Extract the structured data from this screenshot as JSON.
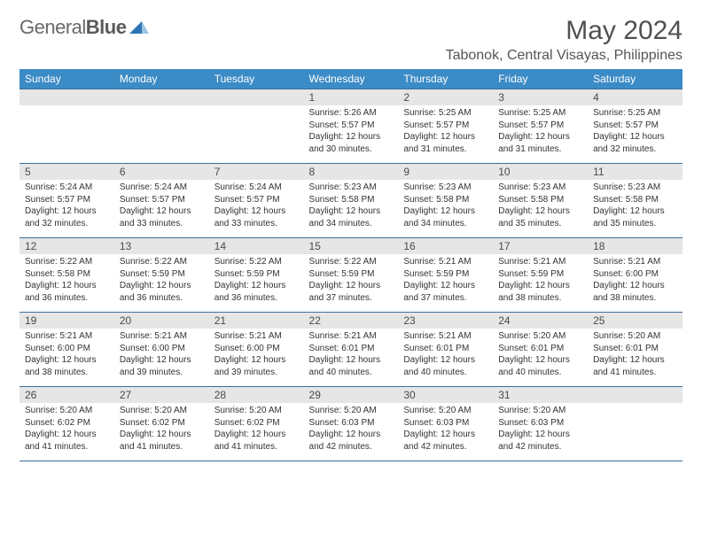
{
  "logo": {
    "word1": "General",
    "word2": "Blue"
  },
  "title": "May 2024",
  "location": "Tabonok, Central Visayas, Philippines",
  "columns": [
    "Sunday",
    "Monday",
    "Tuesday",
    "Wednesday",
    "Thursday",
    "Friday",
    "Saturday"
  ],
  "colors": {
    "header_bg": "#3b8bc6",
    "header_fg": "#ffffff",
    "row_border": "#3b6f9a",
    "daynum_bg": "#e6e6e6",
    "text": "#333333",
    "logo_gray": "#6a6a6a",
    "logo_blue": "#2e74b5"
  },
  "weeks": [
    [
      null,
      null,
      null,
      {
        "n": "1",
        "sr": "5:26 AM",
        "ss": "5:57 PM",
        "dl": "12 hours and 30 minutes."
      },
      {
        "n": "2",
        "sr": "5:25 AM",
        "ss": "5:57 PM",
        "dl": "12 hours and 31 minutes."
      },
      {
        "n": "3",
        "sr": "5:25 AM",
        "ss": "5:57 PM",
        "dl": "12 hours and 31 minutes."
      },
      {
        "n": "4",
        "sr": "5:25 AM",
        "ss": "5:57 PM",
        "dl": "12 hours and 32 minutes."
      }
    ],
    [
      {
        "n": "5",
        "sr": "5:24 AM",
        "ss": "5:57 PM",
        "dl": "12 hours and 32 minutes."
      },
      {
        "n": "6",
        "sr": "5:24 AM",
        "ss": "5:57 PM",
        "dl": "12 hours and 33 minutes."
      },
      {
        "n": "7",
        "sr": "5:24 AM",
        "ss": "5:57 PM",
        "dl": "12 hours and 33 minutes."
      },
      {
        "n": "8",
        "sr": "5:23 AM",
        "ss": "5:58 PM",
        "dl": "12 hours and 34 minutes."
      },
      {
        "n": "9",
        "sr": "5:23 AM",
        "ss": "5:58 PM",
        "dl": "12 hours and 34 minutes."
      },
      {
        "n": "10",
        "sr": "5:23 AM",
        "ss": "5:58 PM",
        "dl": "12 hours and 35 minutes."
      },
      {
        "n": "11",
        "sr": "5:23 AM",
        "ss": "5:58 PM",
        "dl": "12 hours and 35 minutes."
      }
    ],
    [
      {
        "n": "12",
        "sr": "5:22 AM",
        "ss": "5:58 PM",
        "dl": "12 hours and 36 minutes."
      },
      {
        "n": "13",
        "sr": "5:22 AM",
        "ss": "5:59 PM",
        "dl": "12 hours and 36 minutes."
      },
      {
        "n": "14",
        "sr": "5:22 AM",
        "ss": "5:59 PM",
        "dl": "12 hours and 36 minutes."
      },
      {
        "n": "15",
        "sr": "5:22 AM",
        "ss": "5:59 PM",
        "dl": "12 hours and 37 minutes."
      },
      {
        "n": "16",
        "sr": "5:21 AM",
        "ss": "5:59 PM",
        "dl": "12 hours and 37 minutes."
      },
      {
        "n": "17",
        "sr": "5:21 AM",
        "ss": "5:59 PM",
        "dl": "12 hours and 38 minutes."
      },
      {
        "n": "18",
        "sr": "5:21 AM",
        "ss": "6:00 PM",
        "dl": "12 hours and 38 minutes."
      }
    ],
    [
      {
        "n": "19",
        "sr": "5:21 AM",
        "ss": "6:00 PM",
        "dl": "12 hours and 38 minutes."
      },
      {
        "n": "20",
        "sr": "5:21 AM",
        "ss": "6:00 PM",
        "dl": "12 hours and 39 minutes."
      },
      {
        "n": "21",
        "sr": "5:21 AM",
        "ss": "6:00 PM",
        "dl": "12 hours and 39 minutes."
      },
      {
        "n": "22",
        "sr": "5:21 AM",
        "ss": "6:01 PM",
        "dl": "12 hours and 40 minutes."
      },
      {
        "n": "23",
        "sr": "5:21 AM",
        "ss": "6:01 PM",
        "dl": "12 hours and 40 minutes."
      },
      {
        "n": "24",
        "sr": "5:20 AM",
        "ss": "6:01 PM",
        "dl": "12 hours and 40 minutes."
      },
      {
        "n": "25",
        "sr": "5:20 AM",
        "ss": "6:01 PM",
        "dl": "12 hours and 41 minutes."
      }
    ],
    [
      {
        "n": "26",
        "sr": "5:20 AM",
        "ss": "6:02 PM",
        "dl": "12 hours and 41 minutes."
      },
      {
        "n": "27",
        "sr": "5:20 AM",
        "ss": "6:02 PM",
        "dl": "12 hours and 41 minutes."
      },
      {
        "n": "28",
        "sr": "5:20 AM",
        "ss": "6:02 PM",
        "dl": "12 hours and 41 minutes."
      },
      {
        "n": "29",
        "sr": "5:20 AM",
        "ss": "6:03 PM",
        "dl": "12 hours and 42 minutes."
      },
      {
        "n": "30",
        "sr": "5:20 AM",
        "ss": "6:03 PM",
        "dl": "12 hours and 42 minutes."
      },
      {
        "n": "31",
        "sr": "5:20 AM",
        "ss": "6:03 PM",
        "dl": "12 hours and 42 minutes."
      },
      null
    ]
  ],
  "labels": {
    "sunrise": "Sunrise: ",
    "sunset": "Sunset: ",
    "daylight": "Daylight: "
  }
}
